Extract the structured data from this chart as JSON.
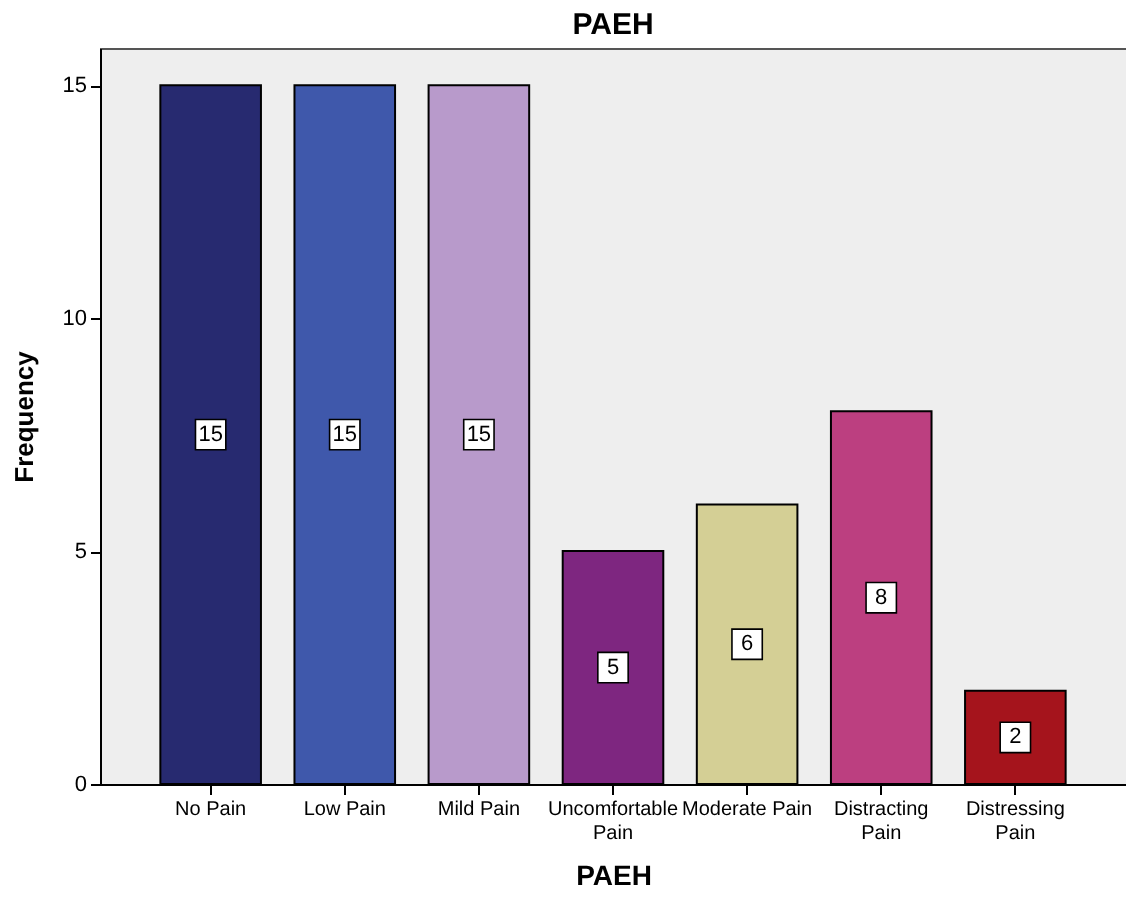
{
  "chart_data": {
    "type": "bar",
    "title": "PAEH",
    "xlabel": "PAEH",
    "ylabel": "Frequency",
    "categories": [
      "No Pain",
      "Low Pain",
      "Mild Pain",
      "Uncomfortable\nPain",
      "Moderate Pain",
      "Distracting\nPain",
      "Distressing\nPain"
    ],
    "values": [
      15,
      15,
      15,
      5,
      6,
      8,
      2
    ],
    "colors": [
      "#272a70",
      "#3f58ab",
      "#b89acb",
      "#7e2680",
      "#d4cf95",
      "#bc3f80",
      "#a5141c"
    ],
    "ylim": [
      0,
      15.8
    ],
    "yticks": [
      0,
      5,
      10,
      15
    ],
    "grid": false,
    "data_labels": true
  }
}
